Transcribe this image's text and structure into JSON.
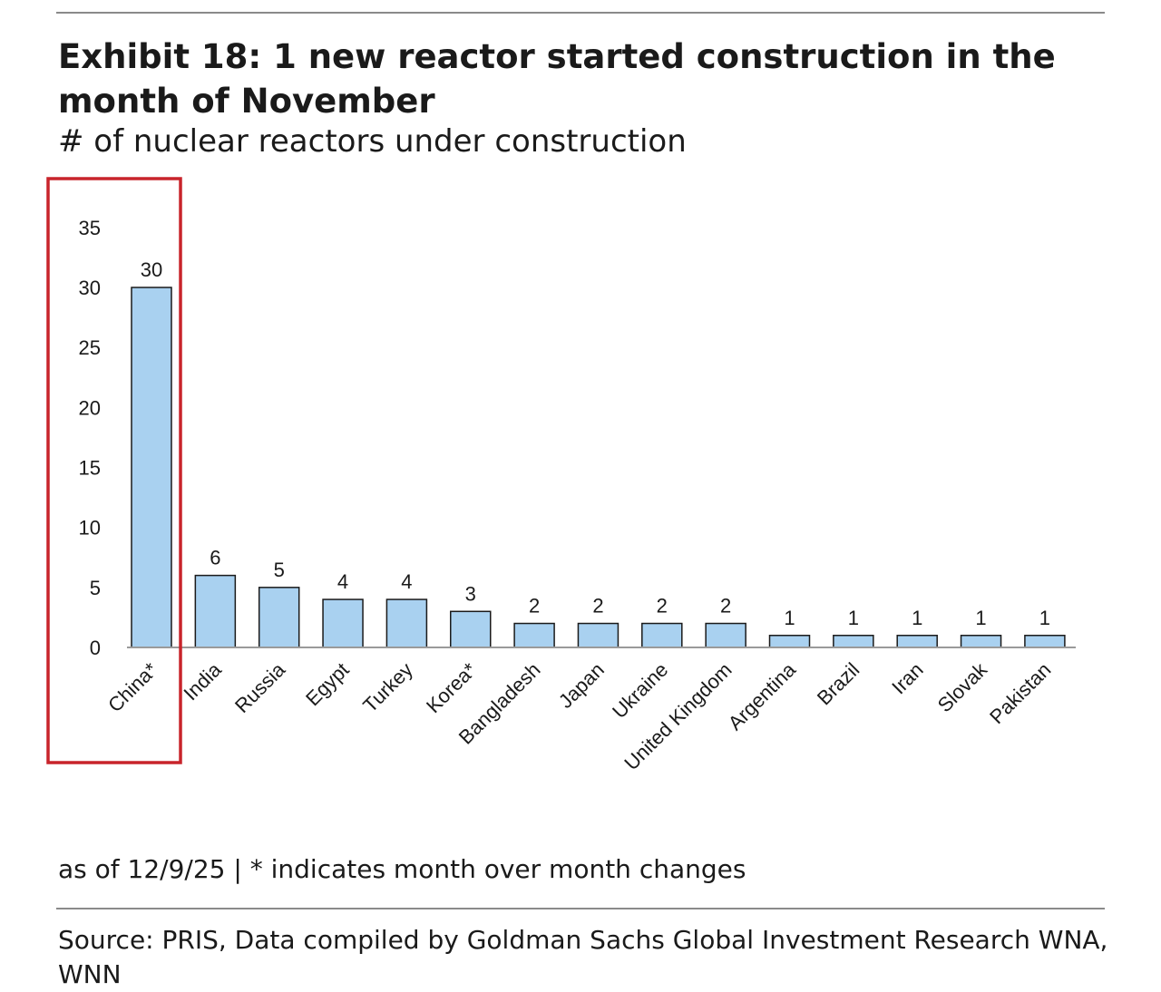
{
  "chart_data": {
    "type": "bar",
    "title": "Exhibit 18: 1 new reactor started construction in the month of November",
    "subtitle": "# of nuclear reactors under construction",
    "categories": [
      "China*",
      "India",
      "Russia",
      "Egypt",
      "Turkey",
      "Korea*",
      "Bangladesh",
      "Japan",
      "Ukraine",
      "United Kingdom",
      "Argentina",
      "Brazil",
      "Iran",
      "Slovak",
      "Pakistan"
    ],
    "values": [
      30,
      6,
      5,
      4,
      4,
      3,
      2,
      2,
      2,
      2,
      1,
      1,
      1,
      1,
      1
    ],
    "ylim": [
      0,
      35
    ],
    "yticks": [
      0,
      5,
      10,
      15,
      20,
      25,
      30,
      35
    ],
    "grid": false,
    "data_labels": true,
    "bar_color": "#a9d1f0",
    "highlight": {
      "category": "China*",
      "color": "#c8242b"
    },
    "note": "as of 12/9/25 | * indicates month over month changes",
    "source": "Source: PRIS, Data compiled by Goldman Sachs Global Investment Research WNA, WNN"
  }
}
